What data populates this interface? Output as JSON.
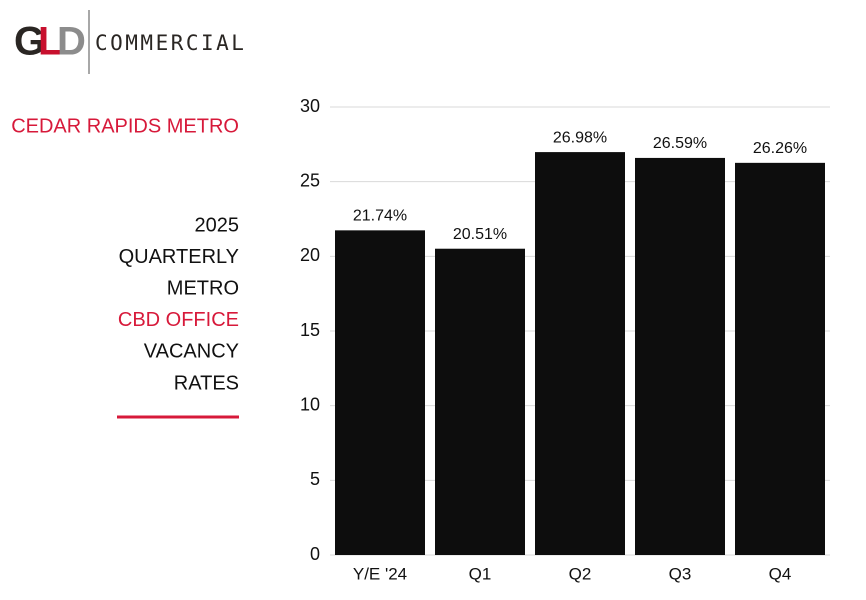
{
  "logo": {
    "letters": [
      {
        "text": "G",
        "color": "#2a2623"
      },
      {
        "text": "L",
        "color": "#c8102e"
      },
      {
        "text": "D",
        "color": "#8c8c8c"
      }
    ],
    "name": "COMMERCIAL"
  },
  "sidebar": {
    "heading": "CEDAR RAPIDS METRO",
    "lines": [
      {
        "text": "2025",
        "color": "#111111"
      },
      {
        "text": "QUARTERLY",
        "color": "#111111"
      },
      {
        "text": "METRO",
        "color": "#111111"
      },
      {
        "text": "CBD OFFICE",
        "color": "#d7193a"
      },
      {
        "text": "VACANCY",
        "color": "#111111"
      },
      {
        "text": "RATES",
        "color": "#111111"
      }
    ]
  },
  "chart_data": {
    "type": "bar",
    "categories": [
      "Y/E '24",
      "Q1",
      "Q2",
      "Q3",
      "Q4"
    ],
    "values": [
      21.74,
      20.51,
      26.98,
      26.59,
      26.26
    ],
    "value_labels": [
      "21.74%",
      "20.51%",
      "26.98%",
      "26.59%",
      "26.26%"
    ],
    "color": "#0d0d0d",
    "ylim": [
      0,
      30
    ],
    "yticks": [
      0,
      5,
      10,
      15,
      20,
      25,
      30
    ],
    "grid": true
  }
}
